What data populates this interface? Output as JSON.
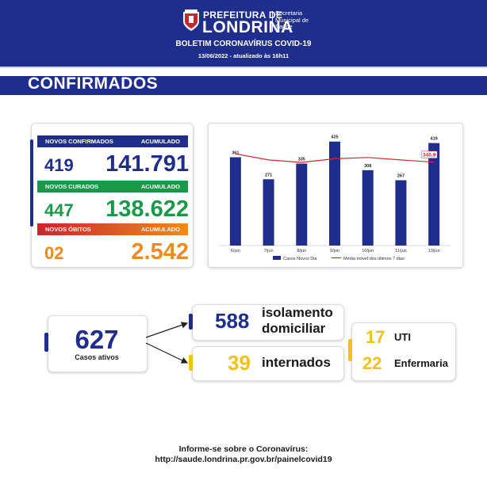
{
  "header": {
    "brand_top": "PREFEITURA DE",
    "brand_main": "LONDRINA",
    "brand_secretaria": "Secretaria Municipal de Saúde",
    "bulletin_title": "BOLETIM CORONAVÍRUS COVID-19",
    "bulletin_date": "13/06/2022 - atualizado às 16h11",
    "logo_icon": "city-crest-icon"
  },
  "section": {
    "title": "CONFIRMADOS"
  },
  "stats": {
    "confirmed": {
      "label": "NOVOS CONFIRMADOS",
      "acc_label": "ACUMULADO",
      "new": "419",
      "acc": "141.791",
      "color": "#1f2e8c"
    },
    "recovered": {
      "label": "NOVOS CURADOS",
      "acc_label": "ACUMULADO",
      "new": "447",
      "acc": "138.622",
      "color": "#1a9a49"
    },
    "deaths": {
      "label": "NOVOS ÓBITOS",
      "acc_label": "ACUMULADO",
      "new": "02",
      "acc": "2.542",
      "color": "#f08a1e"
    }
  },
  "chart_data": {
    "type": "bar",
    "categories": [
      "6/jun",
      "7/jun",
      "8/jun",
      "9/jun",
      "10/jun",
      "11/jun",
      "13/jun"
    ],
    "series": [
      {
        "name": "Casos Novos Dia",
        "type": "bar",
        "color": "#1f2e8c",
        "values": [
          361,
          271,
          335,
          425,
          308,
          267,
          419
        ]
      },
      {
        "name": "Média móvel dos últimos 7 dias",
        "type": "line",
        "color": "#d6262b",
        "values": [
          375,
          350,
          340,
          355,
          360,
          350,
          340.9
        ]
      }
    ],
    "data_labels": [
      "361",
      "271",
      "335",
      "425",
      "308",
      "267",
      "419"
    ],
    "last_line_label": "340,9",
    "legend_position": "bottom",
    "ylim": [
      0,
      450
    ],
    "grid": false
  },
  "active": {
    "value": "627",
    "label": "Casos ativos"
  },
  "outcomes": {
    "isolation": {
      "value": "588",
      "line1": "isolamento",
      "line2": "domiciliar"
    },
    "hospital": {
      "value": "39",
      "label": "internados"
    },
    "uti": {
      "value": "17",
      "label": "UTI"
    },
    "ward": {
      "value": "22",
      "label": "Enfermaria"
    }
  },
  "footer": {
    "line1": "Informe-se sobre o Coronavírus:",
    "line2": "http://saude.londrina.pr.gov.br/painelcovid19"
  }
}
